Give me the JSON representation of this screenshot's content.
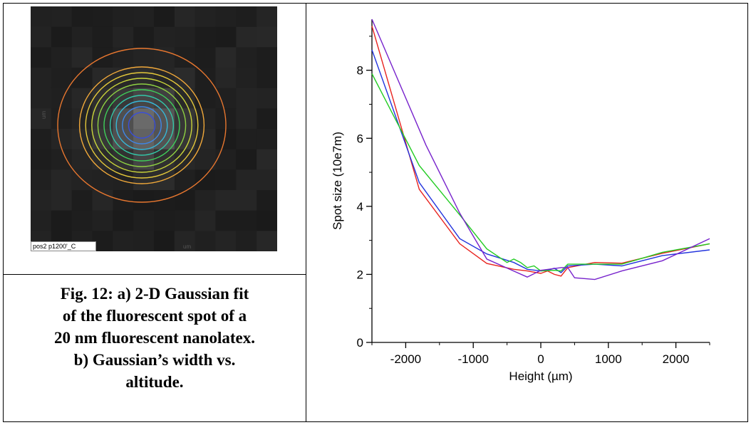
{
  "figure_a": {
    "image_label": "pos2 p1200'_C",
    "x_unit": "um",
    "y_unit": "um",
    "contour_colors": [
      "#3a4fd8",
      "#3f86e8",
      "#36b8d8",
      "#33c7a8",
      "#3fcf5a",
      "#8ed043",
      "#c9d43a",
      "#e4c83a",
      "#f0a83a",
      "#e8772f"
    ]
  },
  "caption": {
    "line1": "Fig. 12: a) 2-D Gaussian fit",
    "line2": "of the fluorescent spot of a",
    "line3": "20 nm fluorescent nanolatex.",
    "line4": "b) Gaussian’s width vs.",
    "line5": "altitude."
  },
  "chart_data": {
    "type": "line",
    "xlabel": "Height (µm)",
    "ylabel": "Spot size (10e7m)",
    "xlim": [
      -2500,
      2500
    ],
    "ylim": [
      0,
      9.5
    ],
    "xticks": [
      -2000,
      -1000,
      0,
      1000,
      2000
    ],
    "yticks": [
      0,
      2,
      4,
      6,
      8
    ],
    "grid": false,
    "series": [
      {
        "color": "#e8231f",
        "x": [
          -2500,
          -1800,
          -1200,
          -800,
          -400,
          -200,
          0,
          100,
          200,
          300,
          400,
          800,
          1200,
          1800,
          2500
        ],
        "y": [
          9.3,
          4.5,
          2.9,
          2.32,
          2.15,
          2.1,
          2.03,
          2.1,
          2.0,
          1.95,
          2.2,
          2.35,
          2.33,
          2.62,
          2.9
        ]
      },
      {
        "color": "#2233dd",
        "x": [
          -2500,
          -1800,
          -1200,
          -800,
          -400,
          -200,
          0,
          100,
          200,
          300,
          400,
          800,
          1200,
          1800,
          2500
        ],
        "y": [
          8.6,
          4.7,
          3.05,
          2.6,
          2.35,
          2.15,
          2.1,
          2.12,
          2.18,
          2.05,
          2.25,
          2.3,
          2.25,
          2.55,
          2.72
        ]
      },
      {
        "color": "#22cc22",
        "x": [
          -2500,
          -1800,
          -1200,
          -800,
          -500,
          -400,
          -300,
          -200,
          -100,
          0,
          200,
          300,
          400,
          800,
          1200,
          1800,
          2500
        ],
        "y": [
          7.9,
          5.2,
          3.75,
          2.75,
          2.35,
          2.45,
          2.35,
          2.2,
          2.25,
          2.1,
          2.12,
          2.1,
          2.3,
          2.3,
          2.3,
          2.65,
          2.9
        ]
      },
      {
        "color": "#7722cc",
        "x": [
          -2500,
          -1700,
          -1200,
          -800,
          -200,
          0,
          300,
          400,
          500,
          800,
          1200,
          1800,
          2500
        ],
        "y": [
          9.5,
          5.8,
          3.8,
          2.45,
          1.92,
          2.12,
          2.2,
          2.2,
          1.9,
          1.85,
          2.1,
          2.4,
          3.05
        ]
      }
    ]
  }
}
